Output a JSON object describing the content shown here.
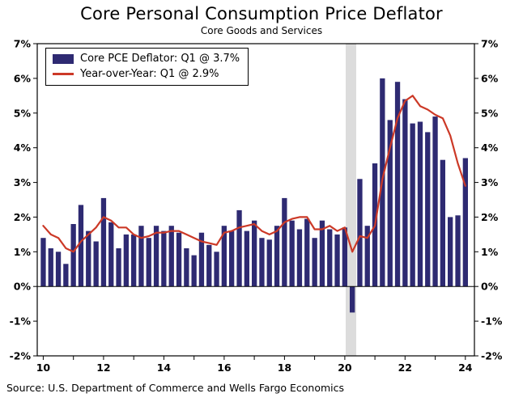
{
  "chart_data": {
    "type": "bar",
    "title": "Core Personal Consumption Price Deflator",
    "subtitle": "Core Goods and Services",
    "source": "Source: U.S. Department of Commerce and Wells Fargo Economics",
    "x_start": 2010.0,
    "x_step": 0.25,
    "x_min": 2009.8,
    "x_max": 2024.3,
    "y_min": -2,
    "y_max": 7,
    "y_tick_step": 1,
    "y_tick_labels": [
      "-2%",
      "-1%",
      "0%",
      "1%",
      "2%",
      "3%",
      "4%",
      "5%",
      "6%",
      "7%"
    ],
    "x_tick_years": [
      2010,
      2011,
      2012,
      2013,
      2014,
      2015,
      2016,
      2017,
      2018,
      2019,
      2020,
      2021,
      2022,
      2023,
      2024
    ],
    "x_label_years": [
      2010,
      2012,
      2014,
      2016,
      2018,
      2020,
      2022,
      2024
    ],
    "x_tick_labels": [
      "10",
      "12",
      "14",
      "16",
      "18",
      "20",
      "22",
      "24"
    ],
    "shaded_bands": [
      {
        "from": 2020.03,
        "to": 2020.38
      }
    ],
    "colors": {
      "bar": "#2E2A72",
      "line": "#CC3927",
      "band": "#DCDCDC",
      "axis": "#000000"
    },
    "legend_position": "top-left",
    "grid": "off",
    "series": [
      {
        "name": "Core PCE Deflator",
        "legend": "Core PCE Deflator: Q1 @ 3.7%",
        "type": "bar",
        "values": [
          1.4,
          1.1,
          1.0,
          0.65,
          1.8,
          2.35,
          1.6,
          1.3,
          2.55,
          1.85,
          1.1,
          1.5,
          1.5,
          1.75,
          1.4,
          1.75,
          1.6,
          1.75,
          1.55,
          1.1,
          0.9,
          1.55,
          1.2,
          1.0,
          1.75,
          1.6,
          2.2,
          1.6,
          1.9,
          1.4,
          1.35,
          1.75,
          2.55,
          1.9,
          1.65,
          1.95,
          1.4,
          1.9,
          1.65,
          1.5,
          1.7,
          -0.75,
          3.1,
          1.75,
          3.55,
          6.0,
          4.8,
          5.9,
          5.4,
          4.7,
          4.75,
          4.45,
          4.9,
          3.65,
          2.0,
          2.05,
          3.7
        ]
      },
      {
        "name": "Year-over-Year",
        "legend": "Year-over-Year: Q1 @ 2.9%",
        "type": "line",
        "values": [
          1.75,
          1.5,
          1.4,
          1.1,
          1.0,
          1.3,
          1.5,
          1.7,
          2.0,
          1.9,
          1.7,
          1.7,
          1.5,
          1.4,
          1.45,
          1.55,
          1.55,
          1.6,
          1.6,
          1.5,
          1.4,
          1.3,
          1.25,
          1.2,
          1.55,
          1.6,
          1.7,
          1.75,
          1.8,
          1.6,
          1.5,
          1.6,
          1.85,
          1.95,
          2.0,
          2.0,
          1.65,
          1.65,
          1.75,
          1.6,
          1.7,
          1.0,
          1.45,
          1.4,
          1.75,
          3.1,
          4.0,
          4.85,
          5.35,
          5.5,
          5.2,
          5.1,
          4.95,
          4.85,
          4.35,
          3.55,
          2.9
        ]
      }
    ]
  }
}
